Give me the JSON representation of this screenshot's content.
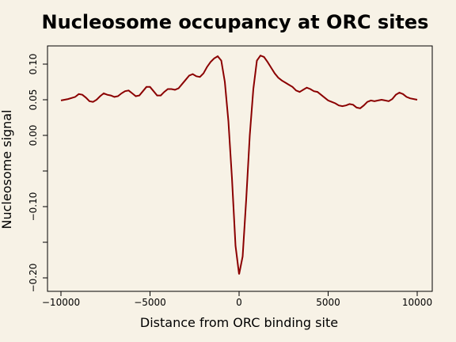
{
  "chart_data": {
    "type": "line",
    "title": "Nucleosome occupancy at ORC sites",
    "xlabel": "Distance from ORC binding site",
    "ylabel": "Nucleosome signal",
    "xlim": [
      -10000,
      10000
    ],
    "ylim": [
      -0.2,
      0.12
    ],
    "x_ticks": [
      -10000,
      -5000,
      0,
      5000,
      10000
    ],
    "x_tick_labels": [
      "−10000",
      "−5000",
      "0",
      "5000",
      "10000"
    ],
    "y_ticks": [
      -0.2,
      -0.15,
      -0.1,
      -0.05,
      0.0,
      0.05,
      0.1
    ],
    "y_tick_labels": [
      "−0.20",
      "",
      "−0.10",
      "",
      "0.00",
      "0.05",
      "0.10"
    ],
    "grid": false,
    "series_color": "#8b0000",
    "series": [
      {
        "x": [
          -10000,
          -9600,
          -9200,
          -9000,
          -8800,
          -8600,
          -8400,
          -8200,
          -8000,
          -7800,
          -7600,
          -7400,
          -7200,
          -7000,
          -6800,
          -6600,
          -6400,
          -6200,
          -6000,
          -5800,
          -5600,
          -5400,
          -5200,
          -5000,
          -4800,
          -4600,
          -4400,
          -4200,
          -4000,
          -3800,
          -3600,
          -3400,
          -3200,
          -3000,
          -2800,
          -2600,
          -2400,
          -2200,
          -2000,
          -1800,
          -1600,
          -1400,
          -1200,
          -1000,
          -800,
          -600,
          -400,
          -200,
          0,
          200,
          400,
          600,
          800,
          1000,
          1200,
          1400,
          1600,
          1800,
          2000,
          2200,
          2400,
          2600,
          2800,
          3000,
          3200,
          3400,
          3600,
          3800,
          4000,
          4200,
          4400,
          4600,
          4800,
          5000,
          5200,
          5400,
          5600,
          5800,
          6000,
          6200,
          6400,
          6600,
          6800,
          7000,
          7200,
          7400,
          7600,
          7800,
          8000,
          8200,
          8400,
          8600,
          8800,
          9000,
          9200,
          9400,
          9600,
          10000
        ],
        "values": [
          0.049,
          0.051,
          0.054,
          0.058,
          0.057,
          0.053,
          0.048,
          0.047,
          0.05,
          0.055,
          0.059,
          0.057,
          0.056,
          0.054,
          0.055,
          0.059,
          0.062,
          0.063,
          0.059,
          0.055,
          0.056,
          0.062,
          0.068,
          0.068,
          0.062,
          0.056,
          0.056,
          0.061,
          0.065,
          0.065,
          0.064,
          0.066,
          0.072,
          0.078,
          0.084,
          0.086,
          0.083,
          0.082,
          0.087,
          0.096,
          0.103,
          0.108,
          0.111,
          0.105,
          0.075,
          0.02,
          -0.06,
          -0.155,
          -0.195,
          -0.17,
          -0.09,
          0.0,
          0.065,
          0.105,
          0.112,
          0.11,
          0.103,
          0.095,
          0.087,
          0.081,
          0.077,
          0.074,
          0.071,
          0.068,
          0.063,
          0.061,
          0.064,
          0.067,
          0.065,
          0.062,
          0.061,
          0.057,
          0.053,
          0.049,
          0.047,
          0.045,
          0.042,
          0.041,
          0.042,
          0.044,
          0.043,
          0.039,
          0.038,
          0.042,
          0.047,
          0.049,
          0.048,
          0.049,
          0.05,
          0.049,
          0.048,
          0.051,
          0.057,
          0.06,
          0.058,
          0.054,
          0.052,
          0.05
        ]
      }
    ]
  }
}
